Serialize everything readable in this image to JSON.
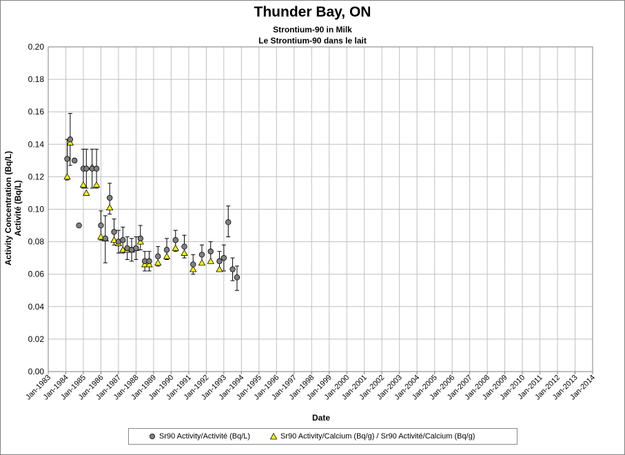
{
  "chart_data": {
    "type": "scatter",
    "title": "Thunder Bay, ON",
    "subtitle": [
      "Strontium-90 in Milk",
      "Le Strontium-90 dans le lait"
    ],
    "xlabel": "Date",
    "ylabel": [
      "Activity Concentration (Bq/L)",
      "Activité (Bq/L)"
    ],
    "ylim": [
      0,
      0.2
    ],
    "yticks": [
      "0.00",
      "0.02",
      "0.04",
      "0.06",
      "0.08",
      "0.10",
      "0.12",
      "0.14",
      "0.16",
      "0.18",
      "0.20"
    ],
    "xlim": [
      1983,
      2014
    ],
    "xticks": [
      "Jan-1983",
      "Jan-1984",
      "Jan-1985",
      "Jan-1986",
      "Jan-1987",
      "Jan-1988",
      "Jan-1989",
      "Jan-1990",
      "Jan-1991",
      "Jan-1992",
      "Jan-1993",
      "Jan-1994",
      "Jan-1995",
      "Jan-1996",
      "Jan-1997",
      "Jan-1998",
      "Jan-1999",
      "Jan-2000",
      "Jan-2001",
      "Jan-2002",
      "Jan-2003",
      "Jan-2004",
      "Jan-2005",
      "Jan-2006",
      "Jan-2007",
      "Jan-2008",
      "Jan-2009",
      "Jan-2010",
      "Jan-2011",
      "Jan-2012",
      "Jan-2013",
      "Jan-2014"
    ],
    "grid": true,
    "legend_position": "bottom",
    "series": [
      {
        "name": "Sr90 Activity/Activité (Bq/L)",
        "marker": "circle",
        "color": "#808080",
        "points": [
          {
            "x": 1984.08,
            "y": 0.131,
            "lo": 0.118,
            "hi": 0.143
          },
          {
            "x": 1984.25,
            "y": 0.143,
            "lo": 0.127,
            "hi": 0.159
          },
          {
            "x": 1984.5,
            "y": 0.13
          },
          {
            "x": 1984.75,
            "y": 0.09
          },
          {
            "x": 1985.0,
            "y": 0.125,
            "lo": 0.113,
            "hi": 0.137
          },
          {
            "x": 1985.17,
            "y": 0.125,
            "lo": 0.113,
            "hi": 0.137
          },
          {
            "x": 1985.5,
            "y": 0.125,
            "lo": 0.113,
            "hi": 0.137
          },
          {
            "x": 1985.75,
            "y": 0.125,
            "lo": 0.113,
            "hi": 0.137
          },
          {
            "x": 1986.0,
            "y": 0.09,
            "lo": 0.081,
            "hi": 0.099
          },
          {
            "x": 1986.25,
            "y": 0.082,
            "lo": 0.067,
            "hi": 0.096
          },
          {
            "x": 1986.5,
            "y": 0.107,
            "lo": 0.097,
            "hi": 0.116
          },
          {
            "x": 1986.75,
            "y": 0.086,
            "lo": 0.078,
            "hi": 0.094
          },
          {
            "x": 1987.0,
            "y": 0.08,
            "lo": 0.073,
            "hi": 0.087
          },
          {
            "x": 1987.25,
            "y": 0.081,
            "lo": 0.073,
            "hi": 0.089
          },
          {
            "x": 1987.5,
            "y": 0.076,
            "lo": 0.069,
            "hi": 0.083
          },
          {
            "x": 1987.75,
            "y": 0.075,
            "lo": 0.068,
            "hi": 0.082
          },
          {
            "x": 1988.0,
            "y": 0.076,
            "lo": 0.069,
            "hi": 0.083
          },
          {
            "x": 1988.25,
            "y": 0.082,
            "lo": 0.075,
            "hi": 0.09
          },
          {
            "x": 1988.5,
            "y": 0.068,
            "lo": 0.062,
            "hi": 0.074
          },
          {
            "x": 1988.75,
            "y": 0.068,
            "lo": 0.062,
            "hi": 0.074
          },
          {
            "x": 1989.25,
            "y": 0.071,
            "lo": 0.065,
            "hi": 0.077
          },
          {
            "x": 1989.75,
            "y": 0.075,
            "lo": 0.069,
            "hi": 0.082
          },
          {
            "x": 1990.25,
            "y": 0.081,
            "lo": 0.074,
            "hi": 0.087
          },
          {
            "x": 1990.75,
            "y": 0.077,
            "lo": 0.07,
            "hi": 0.084
          },
          {
            "x": 1991.25,
            "y": 0.066,
            "lo": 0.06,
            "hi": 0.072
          },
          {
            "x": 1991.75,
            "y": 0.072,
            "lo": 0.066,
            "hi": 0.078
          },
          {
            "x": 1992.25,
            "y": 0.074,
            "lo": 0.067,
            "hi": 0.08
          },
          {
            "x": 1992.75,
            "y": 0.068,
            "lo": 0.062,
            "hi": 0.074
          },
          {
            "x": 1993.0,
            "y": 0.07,
            "lo": 0.062,
            "hi": 0.078
          },
          {
            "x": 1993.25,
            "y": 0.092,
            "lo": 0.083,
            "hi": 0.102
          },
          {
            "x": 1993.5,
            "y": 0.063,
            "lo": 0.056,
            "hi": 0.07
          },
          {
            "x": 1993.75,
            "y": 0.058,
            "lo": 0.05,
            "hi": 0.065
          }
        ]
      },
      {
        "name": "Sr90 Activity/Calcium (Bq/g) / Sr90 Activité/Calcium (Bq/g)",
        "marker": "triangle",
        "color": "#ffff00",
        "points": [
          {
            "x": 1984.08,
            "y": 0.12
          },
          {
            "x": 1984.25,
            "y": 0.141
          },
          {
            "x": 1985.0,
            "y": 0.115
          },
          {
            "x": 1985.17,
            "y": 0.11
          },
          {
            "x": 1985.5,
            "y": 0.126
          },
          {
            "x": 1985.75,
            "y": 0.115
          },
          {
            "x": 1986.0,
            "y": 0.083
          },
          {
            "x": 1986.25,
            "y": 0.082
          },
          {
            "x": 1986.5,
            "y": 0.101
          },
          {
            "x": 1986.75,
            "y": 0.081
          },
          {
            "x": 1987.0,
            "y": 0.079
          },
          {
            "x": 1987.25,
            "y": 0.075
          },
          {
            "x": 1987.5,
            "y": 0.075
          },
          {
            "x": 1987.75,
            "y": 0.075
          },
          {
            "x": 1988.0,
            "y": 0.076
          },
          {
            "x": 1988.25,
            "y": 0.08
          },
          {
            "x": 1988.5,
            "y": 0.066
          },
          {
            "x": 1988.75,
            "y": 0.066
          },
          {
            "x": 1989.25,
            "y": 0.067
          },
          {
            "x": 1989.75,
            "y": 0.071
          },
          {
            "x": 1990.25,
            "y": 0.076
          },
          {
            "x": 1990.75,
            "y": 0.073
          },
          {
            "x": 1991.25,
            "y": 0.063
          },
          {
            "x": 1991.75,
            "y": 0.067
          },
          {
            "x": 1992.25,
            "y": 0.068
          },
          {
            "x": 1992.75,
            "y": 0.063
          }
        ]
      }
    ]
  }
}
